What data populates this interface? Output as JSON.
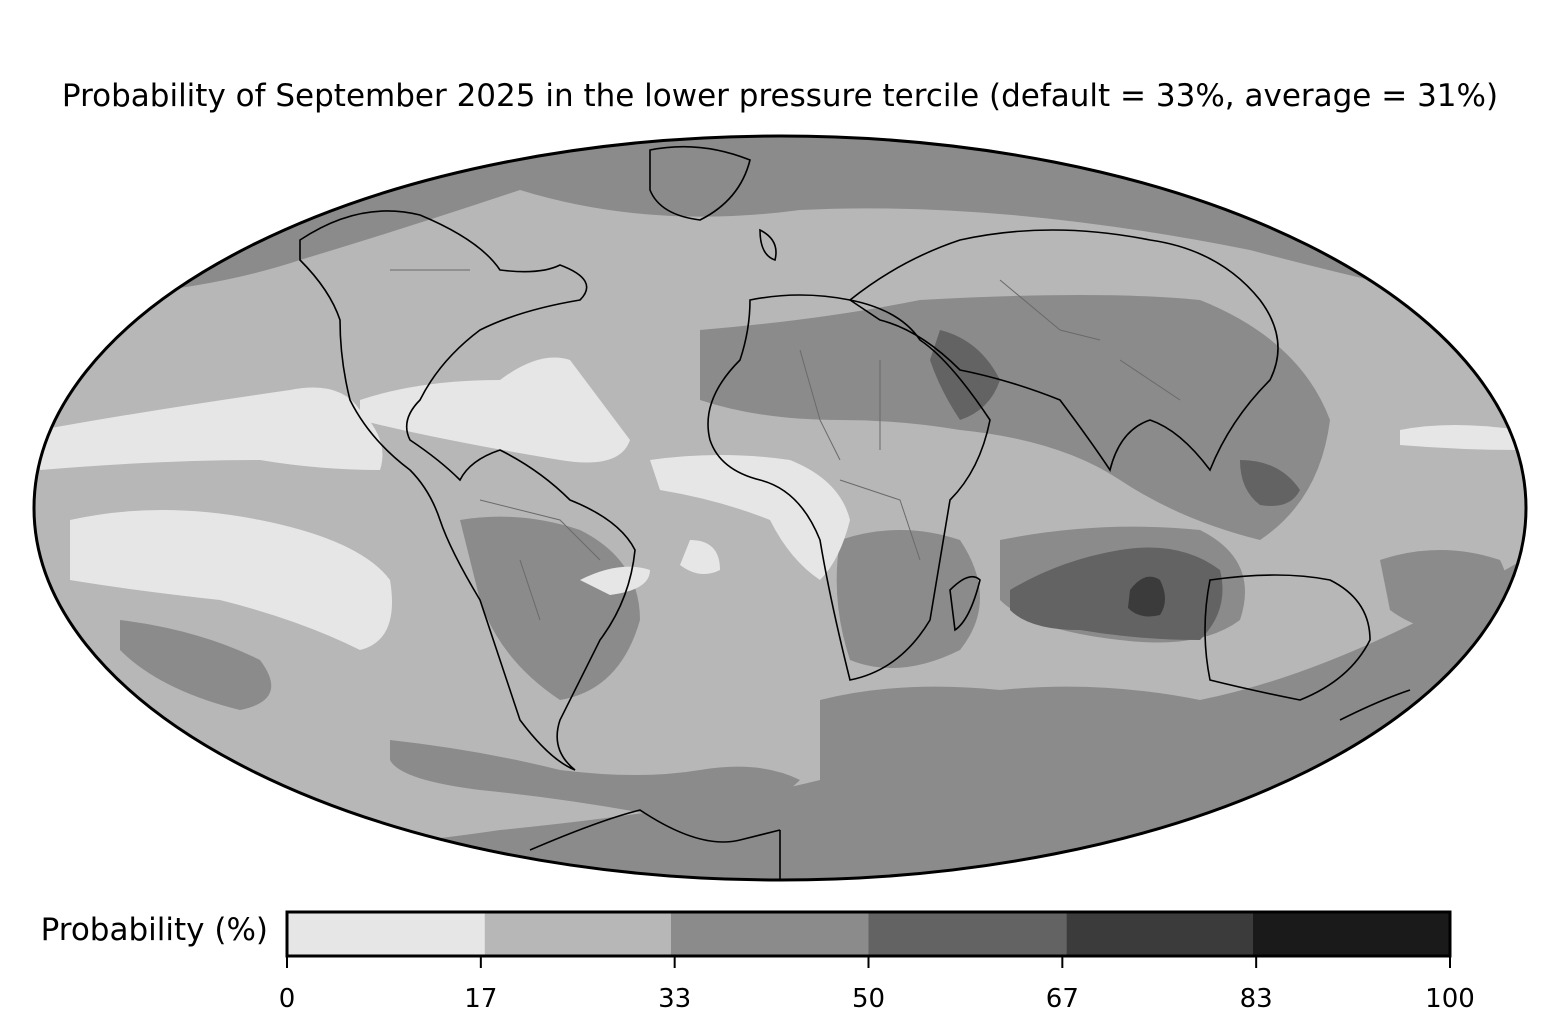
{
  "title": "Probability of September 2025 in the lower pressure tercile (default = 33%, average = 31%)",
  "colorbar": {
    "label": "Probability (%)",
    "ticks": [
      "0",
      "17",
      "33",
      "50",
      "67",
      "83",
      "100"
    ],
    "bins": [
      {
        "from": 0,
        "to": 17,
        "color": "#e6e6e6"
      },
      {
        "from": 17,
        "to": 33,
        "color": "#b7b7b7"
      },
      {
        "from": 33,
        "to": 50,
        "color": "#8b8b8b"
      },
      {
        "from": 50,
        "to": 67,
        "color": "#636363"
      },
      {
        "from": 67,
        "to": 83,
        "color": "#3b3b3b"
      },
      {
        "from": 83,
        "to": 100,
        "color": "#1a1a1a"
      }
    ]
  },
  "map": {
    "projection": "Mollweide",
    "features": [
      "coastlines",
      "country borders"
    ]
  }
}
